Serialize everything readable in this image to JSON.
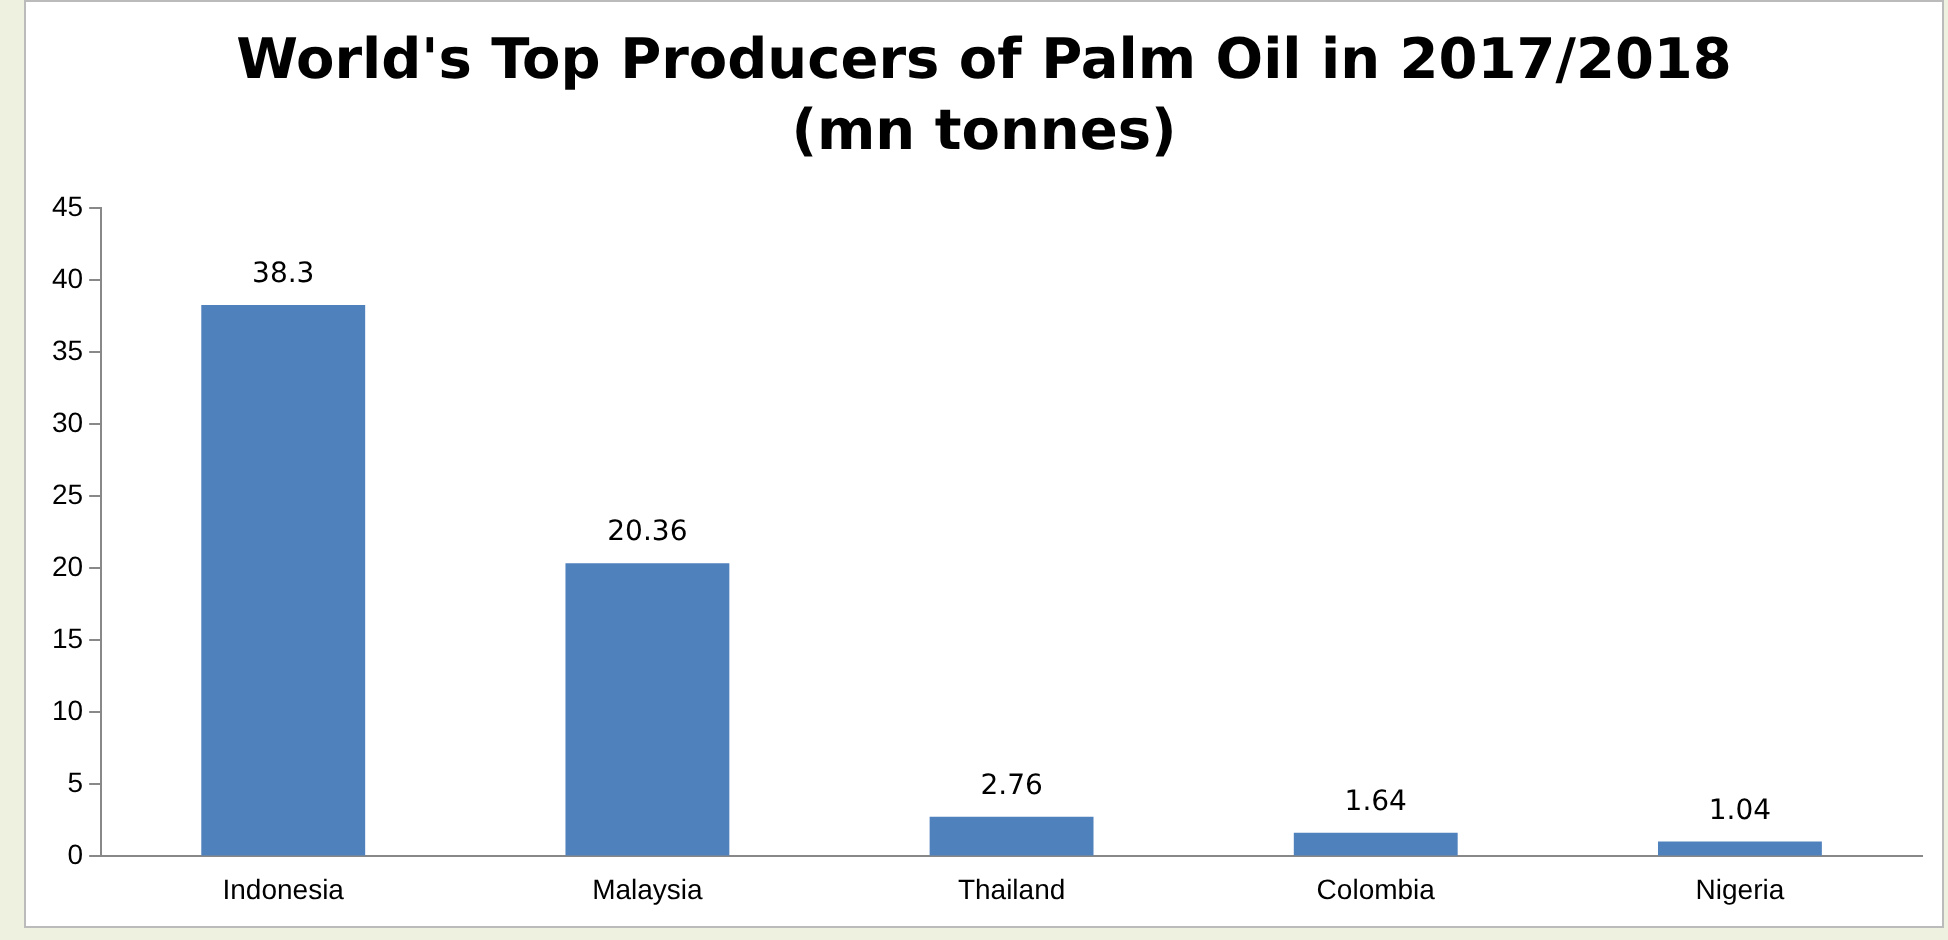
{
  "chart_data": {
    "type": "bar",
    "title": "World's Top Producers of Palm Oil in 2017/2018",
    "subtitle": "(mn tonnes)",
    "categories": [
      "Indonesia",
      "Malaysia",
      "Thailand",
      "Colombia",
      "Nigeria"
    ],
    "values": [
      38.3,
      20.36,
      2.76,
      1.64,
      1.04
    ],
    "color": "#4f81bd",
    "ylim": [
      0,
      45
    ],
    "yticks": [
      0,
      5,
      10,
      15,
      20,
      25,
      30,
      35,
      40,
      45
    ],
    "grid": false,
    "legend": false,
    "data_labels": true
  }
}
